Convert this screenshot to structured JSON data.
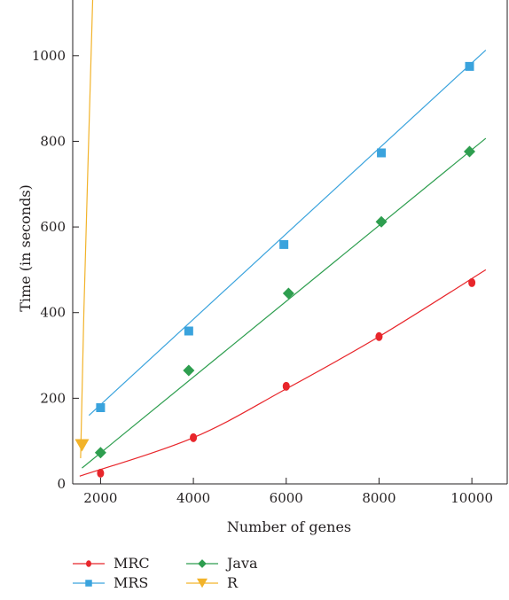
{
  "chart_data": {
    "type": "line",
    "xlabel": "Number of genes",
    "ylabel": "Time (in seconds)",
    "xlim": [
      1400,
      10800
    ],
    "ylim": [
      0,
      1130
    ],
    "xticks": [
      2000,
      4000,
      6000,
      8000,
      10000
    ],
    "yticks": [
      0,
      200,
      400,
      600,
      800,
      1000
    ],
    "grid": false,
    "legend_position": "bottom-left",
    "series": [
      {
        "name": "MRC",
        "color": "#e8262b",
        "marker": "circle",
        "points": [
          [
            2000,
            25
          ],
          [
            4000,
            108
          ],
          [
            6000,
            228
          ],
          [
            8000,
            344
          ],
          [
            10000,
            470
          ]
        ],
        "fit": [
          [
            1550,
            18
          ],
          [
            4000,
            108
          ],
          [
            6000,
            222
          ],
          [
            8000,
            344
          ],
          [
            10300,
            500
          ]
        ]
      },
      {
        "name": "MRS",
        "color": "#3aa3dd",
        "marker": "square",
        "points": [
          [
            2000,
            178
          ],
          [
            3900,
            357
          ],
          [
            5950,
            559
          ],
          [
            8050,
            773
          ],
          [
            9950,
            975
          ]
        ],
        "fit": [
          [
            1750,
            160
          ],
          [
            10300,
            1013
          ]
        ]
      },
      {
        "name": "Java",
        "color": "#2e9e4f",
        "marker": "diamond",
        "points": [
          [
            2000,
            73
          ],
          [
            3900,
            265
          ],
          [
            6050,
            445
          ],
          [
            8050,
            612
          ],
          [
            9950,
            776
          ]
        ],
        "fit": [
          [
            1600,
            37
          ],
          [
            10300,
            807
          ]
        ]
      },
      {
        "name": "R",
        "color": "#f2b32a",
        "marker": "triangle",
        "points": [
          [
            1600,
            90
          ]
        ],
        "fit": [
          [
            1570,
            60
          ],
          [
            1640,
            400
          ],
          [
            1830,
            1130
          ]
        ]
      }
    ]
  }
}
